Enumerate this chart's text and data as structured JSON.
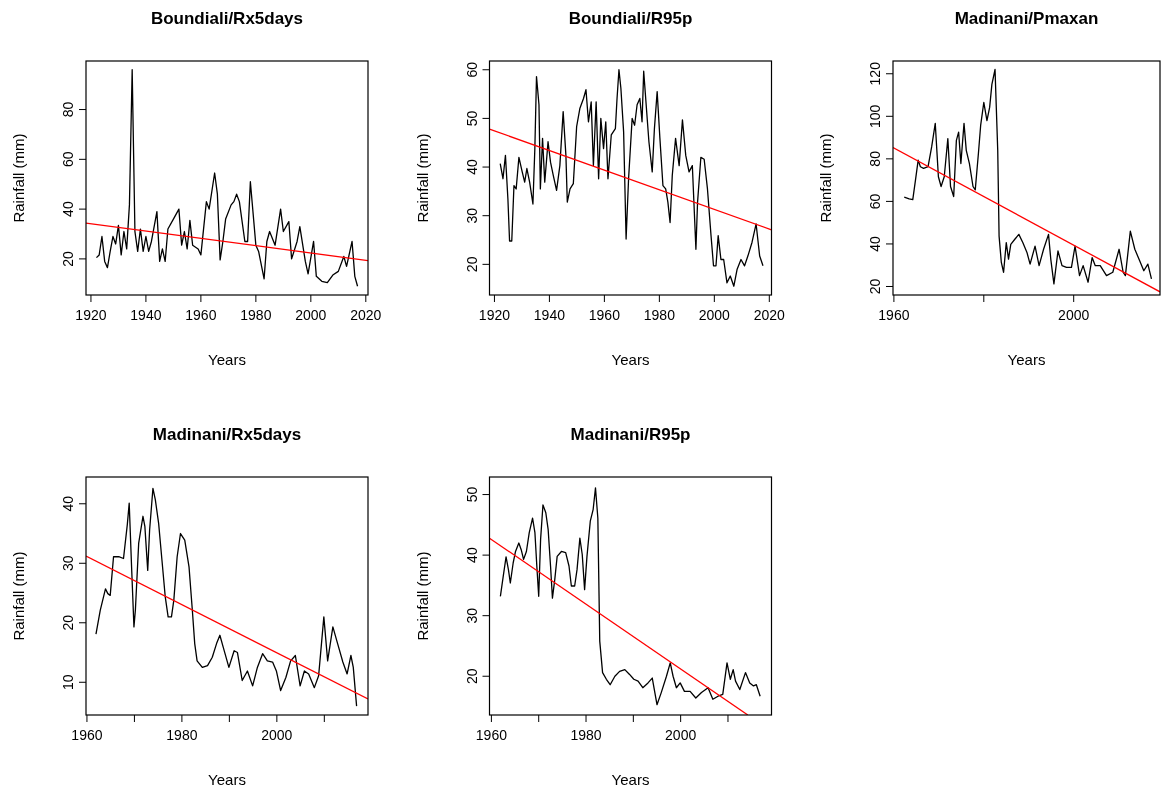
{
  "chart_data": [
    {
      "type": "line",
      "title": "Boundiali/Rx5days",
      "xlabel": "Years",
      "ylabel": "Rainfall (mm)",
      "xlim": [
        1918.2,
        2020.8
      ],
      "ylim": [
        5.5,
        99.5
      ],
      "xticks": [
        1920,
        1940,
        1960,
        1980,
        2000,
        2020
      ],
      "yticks": [
        20,
        40,
        60,
        80
      ],
      "series": [
        {
          "color": "#000000",
          "x": [
            1922,
            1923,
            1924,
            1925,
            1926,
            1927,
            1928,
            1929,
            1930,
            1931,
            1932,
            1933,
            1934,
            1935,
            1936,
            1937,
            1938,
            1939,
            1940,
            1941,
            1942,
            1944,
            1945,
            1946,
            1947,
            1948,
            1950,
            1952,
            1953,
            1954,
            1955,
            1956,
            1957,
            1959,
            1960,
            1962,
            1963,
            1965,
            1966,
            1967,
            1968,
            1969,
            1971,
            1972,
            1973,
            1974,
            1976,
            1977,
            1978,
            1980,
            1981,
            1983,
            1984,
            1985,
            1987,
            1989,
            1990,
            1992,
            1993,
            1995,
            1996,
            1998,
            1999,
            2001,
            2002,
            2004,
            2006,
            2008,
            2010,
            2012,
            2013,
            2015,
            2016,
            2017
          ],
          "values": [
            20.5,
            21.6,
            29,
            19,
            16.5,
            23,
            29,
            26,
            33.5,
            21.6,
            31,
            24,
            41.7,
            96,
            31,
            23,
            32,
            23,
            29,
            23,
            27,
            39,
            19,
            24,
            19,
            32,
            36,
            40,
            25.5,
            31,
            24,
            35.5,
            25.5,
            24,
            21.6,
            43,
            40,
            54.5,
            46,
            19.6,
            27,
            36,
            41.7,
            43,
            46,
            43,
            27,
            27,
            51,
            25.5,
            23,
            12,
            27,
            31,
            25.5,
            40,
            31,
            35,
            20,
            27,
            33,
            19,
            14,
            27,
            13,
            11,
            10.5,
            13.5,
            15,
            21,
            17,
            27,
            13,
            9
          ]
        },
        {
          "color": "#ff0000",
          "x": [
            1918.2,
            2020.8
          ],
          "values": [
            34.4,
            19.3
          ]
        }
      ]
    },
    {
      "type": "line",
      "title": "Boundiali/R95p",
      "xlabel": "Years",
      "ylabel": "Rainfall (mm)",
      "xlim": [
        1918.2,
        2020.8
      ],
      "ylim": [
        13.7,
        61.8
      ],
      "xticks": [
        1920,
        1940,
        1960,
        1980,
        2000,
        2020
      ],
      "yticks": [
        20,
        30,
        40,
        50,
        60
      ],
      "series": [
        {
          "color": "#000000",
          "x": [
            1922.1,
            1923.1,
            1924.0,
            1924.9,
            1925.5,
            1926.3,
            1927.1,
            1927.9,
            1928.9,
            1930.1,
            1931.0,
            1931.8,
            1932.8,
            1934.0,
            1934.7,
            1935.3,
            1936.2,
            1936.7,
            1937.5,
            1938.3,
            1939.5,
            1940.4,
            1941.4,
            1942.6,
            1943.8,
            1945.0,
            1946.0,
            1946.5,
            1947.5,
            1948.7,
            1949.9,
            1951.1,
            1952.4,
            1953.3,
            1954.2,
            1955.2,
            1956.0,
            1957.0,
            1957.9,
            1958.7,
            1959.7,
            1960.5,
            1961.3,
            1962.5,
            1964.0,
            1964.6,
            1965.3,
            1966.0,
            1967.0,
            1967.9,
            1968.8,
            1970.1,
            1971.0,
            1971.9,
            1972.9,
            1973.7,
            1974.3,
            1975.2,
            1976.2,
            1977.4,
            1978.2,
            1979.2,
            1980.2,
            1981.3,
            1982.3,
            1983.1,
            1983.9,
            1984.7,
            1985.9,
            1987.2,
            1988.4,
            1989.6,
            1990.8,
            1992.0,
            1993.3,
            1993.9,
            1995.1,
            1996.3,
            1997.5,
            1998.8,
            1999.7,
            2000.6,
            2001.4,
            2002.4,
            2003.4,
            2004.6,
            2005.8,
            2007.1,
            2008.3,
            2009.7,
            2011.0,
            2012.2,
            2013.7,
            2015.2,
            2016.5,
            2017.7
          ],
          "values": [
            40.7,
            37.6,
            42.4,
            33.4,
            24.8,
            24.8,
            36.2,
            35.5,
            42,
            39,
            36.9,
            39.7,
            36.9,
            32.4,
            43.8,
            58.6,
            52.8,
            35.5,
            45.9,
            36.9,
            45.2,
            41,
            38.3,
            35.2,
            40.3,
            51.4,
            42.4,
            32.8,
            35.5,
            36.6,
            48.3,
            52.1,
            54.1,
            55.9,
            49.3,
            53.4,
            40.3,
            53.4,
            37.6,
            50,
            43.8,
            49.3,
            37.6,
            46.6,
            47.9,
            54.1,
            60,
            56.2,
            47.2,
            25.2,
            37.6,
            50,
            48.6,
            52.8,
            54.1,
            49.3,
            59.7,
            52.8,
            45.2,
            39,
            47.9,
            55.5,
            45.9,
            36.2,
            35.5,
            32.8,
            28.6,
            38.3,
            45.9,
            40.3,
            49.7,
            42.4,
            39,
            40.3,
            23.1,
            32.8,
            42,
            41.6,
            35.5,
            25.9,
            19.7,
            19.7,
            25.9,
            21,
            21,
            16.2,
            17.6,
            15.5,
            19,
            21,
            19.7,
            21.7,
            24.5,
            28.3,
            21.7,
            19.7
          ]
        },
        {
          "color": "#ff0000",
          "x": [
            1918.2,
            2020.8
          ],
          "values": [
            47.8,
            27.1
          ]
        }
      ]
    },
    {
      "type": "line",
      "title": "Madinani/Pmaxan",
      "xlabel": "Years",
      "ylabel": "Rainfall (mm)",
      "xlim": [
        1959.8,
        2019.2
      ],
      "ylim": [
        16,
        126
      ],
      "xticks": [
        1960,
        {
          "value": 1980,
          "label": null
        },
        2000
      ],
      "yticks": [
        20,
        40,
        60,
        80,
        100,
        120
      ],
      "series": [
        {
          "color": "#000000",
          "x": [
            1962.3,
            1963.4,
            1964.2,
            1964.8,
            1965.4,
            1965.9,
            1966.6,
            1967.6,
            1968.4,
            1969.2,
            1969.9,
            1970.5,
            1971.2,
            1972,
            1972.6,
            1973.3,
            1973.9,
            1974.4,
            1974.9,
            1975.6,
            1976.1,
            1976.8,
            1977.6,
            1978.1,
            1978.8,
            1979.3,
            1980,
            1980.7,
            1981.3,
            1981.8,
            1982.5,
            1983.1,
            1983.4,
            1983.9,
            1984.4,
            1985,
            1985.5,
            1986,
            1986.9,
            1987.8,
            1988.7,
            1989.6,
            1990.3,
            1991.4,
            1992.3,
            1993.3,
            1994.4,
            1994.9,
            1995.6,
            1996.5,
            1997.4,
            1998.4,
            1999.5,
            2000.3,
            2001.3,
            2002.1,
            2003.2,
            2004.1,
            2004.8,
            2005.9,
            2007.3,
            2008.7,
            2010.1,
            2011,
            2011.5,
            2012.6,
            2013.6,
            2014.7,
            2015.6,
            2016.5,
            2017.3
          ],
          "values": [
            62,
            61.2,
            60.8,
            70,
            79.4,
            76.3,
            75.5,
            76.3,
            85.6,
            96.7,
            71.6,
            67,
            71.6,
            89.5,
            67,
            62.3,
            88.7,
            92.6,
            77.8,
            96.7,
            84,
            77.8,
            67,
            65.4,
            82.5,
            95.7,
            106.5,
            98,
            104.2,
            115,
            122,
            84,
            43.7,
            31.3,
            26.7,
            40.6,
            32.9,
            39.8,
            42.2,
            44.5,
            40.6,
            36,
            30.5,
            39,
            29.8,
            37.5,
            44.5,
            32.9,
            21.2,
            36.7,
            29.8,
            29,
            29,
            39,
            25.1,
            29.8,
            22,
            33.6,
            29.8,
            29.8,
            25.1,
            26.7,
            37.5,
            26.7,
            25.1,
            46,
            37.5,
            32,
            27.4,
            30.5,
            23.6
          ]
        },
        {
          "color": "#ff0000",
          "x": [
            1959.8,
            2019.2
          ],
          "values": [
            85.3,
            17.5
          ]
        }
      ]
    },
    {
      "type": "line",
      "title": "Madinani/Rx5days",
      "xlabel": "Years",
      "ylabel": "Rainfall (mm)",
      "xlim": [
        1959.8,
        2019.2
      ],
      "ylim": [
        4.5,
        44.5
      ],
      "xticks": [
        1960,
        {
          "value": 1970,
          "label": null
        },
        1980,
        {
          "value": 1990,
          "label": null
        },
        2000,
        {
          "value": 2010,
          "label": null
        }
      ],
      "yticks": [
        10,
        20,
        30,
        40
      ],
      "series": [
        {
          "color": "#000000",
          "x": [
            1961.9,
            1962.8,
            1963.9,
            1964.4,
            1964.9,
            1965.6,
            1966.7,
            1967.7,
            1968.5,
            1968.9,
            1969.4,
            1969.9,
            1970.2,
            1970.9,
            1971.8,
            1972.2,
            1972.8,
            1973.2,
            1973.9,
            1974.4,
            1975.1,
            1975.8,
            1976.5,
            1977.1,
            1977.8,
            1978.3,
            1979,
            1979.7,
            1980.6,
            1981.5,
            1982.2,
            1982.7,
            1983.2,
            1984.3,
            1985.4,
            1986.4,
            1987.3,
            1988.0,
            1988.7,
            1989.9,
            1991,
            1991.7,
            1992.7,
            1993.8,
            1994.9,
            1995.9,
            1997,
            1998,
            1999.1,
            1999.9,
            2000.8,
            2001.9,
            2002.9,
            2003.9,
            2004.9,
            2005.8,
            2006.7,
            2007.9,
            2008.8,
            2009.9,
            2010.7,
            2011.8,
            2012.8,
            2013.9,
            2014.8,
            2015.6,
            2016.1,
            2016.8
          ],
          "values": [
            18.1,
            22.1,
            25.7,
            24.9,
            24.6,
            31.1,
            31.1,
            30.8,
            36.5,
            40.1,
            29.4,
            19.3,
            22.1,
            33.4,
            37.9,
            36.2,
            28.8,
            35.6,
            42.6,
            40.7,
            36.7,
            30.5,
            24.3,
            21,
            21,
            23.8,
            31.1,
            35,
            33.9,
            29.4,
            22.1,
            16.5,
            13.6,
            12.5,
            12.8,
            14.2,
            16.5,
            17.9,
            15.9,
            12.5,
            15.3,
            15,
            10.3,
            11.9,
            9.4,
            12.5,
            14.8,
            13.6,
            13.4,
            11.9,
            8.6,
            10.8,
            13.6,
            14.5,
            9.4,
            11.9,
            11.4,
            9.1,
            11.1,
            21,
            13.6,
            19.3,
            16.5,
            13.4,
            11.4,
            14.5,
            12.5,
            6
          ]
        },
        {
          "color": "#ff0000",
          "x": [
            1959.8,
            2019.2
          ],
          "values": [
            31.2,
            7.2
          ]
        }
      ]
    },
    {
      "type": "line",
      "title": "Madinani/R95p",
      "xlabel": "Years",
      "ylabel": "Rainfall (mm)",
      "xlim": [
        1959.6,
        2019.2
      ],
      "ylim": [
        13.6,
        52.9
      ],
      "xticks": [
        1960,
        {
          "value": 1970,
          "label": null
        },
        1980,
        {
          "value": 1990,
          "label": null
        },
        2000,
        {
          "value": 2010,
          "label": null
        }
      ],
      "yticks": [
        20,
        30,
        40,
        50
      ],
      "series": [
        {
          "color": "#000000",
          "x": [
            1961.9,
            1962.5,
            1963.1,
            1963.6,
            1964,
            1964.6,
            1965.1,
            1965.8,
            1966.3,
            1966.8,
            1967.4,
            1968,
            1968.7,
            1969.2,
            1969.6,
            1970,
            1970.4,
            1970.9,
            1971.5,
            1972,
            1972.5,
            1972.9,
            1973.4,
            1973.9,
            1974.8,
            1975.7,
            1976.4,
            1976.9,
            1977.6,
            1978.1,
            1978.7,
            1979.2,
            1979.7,
            1980.2,
            1980.9,
            1981.5,
            1982,
            1982.5,
            1982.9,
            1983.5,
            1984.3,
            1985.1,
            1986.1,
            1987.1,
            1988.2,
            1989.2,
            1990.1,
            1991,
            1992,
            1993.1,
            1994,
            1995,
            1995.9,
            1997,
            1997.8,
            1998.4,
            1999.1,
            1999.9,
            2000.8,
            2002,
            2003.2,
            2004.4,
            2005.8,
            2006.8,
            2007.9,
            2008.9,
            2009.8,
            2010.5,
            2011.1,
            2011.6,
            2012.5,
            2013.7,
            2014.6,
            2015.4,
            2016,
            2016.8
          ],
          "values": [
            33.2,
            36.5,
            39.7,
            37.6,
            35.4,
            38.7,
            40.6,
            42,
            40.9,
            39.3,
            40.6,
            43.7,
            46.1,
            43.7,
            38.2,
            33.2,
            42.6,
            48.3,
            47,
            44.2,
            38.2,
            32.9,
            36,
            39.8,
            40.6,
            40.4,
            38.2,
            34.9,
            34.9,
            37.6,
            42.8,
            40.1,
            34.3,
            39.8,
            45.6,
            47.5,
            51.1,
            46.1,
            25.8,
            20.6,
            19.5,
            18.6,
            20,
            20.8,
            21.1,
            20.3,
            19.5,
            19.2,
            18.1,
            18.9,
            19.7,
            15.3,
            17.3,
            20,
            22.2,
            20,
            18.1,
            18.9,
            17.5,
            17.5,
            16.4,
            17.3,
            18.1,
            16.2,
            16.7,
            17,
            22.2,
            19.5,
            21.1,
            19.2,
            17.8,
            20.6,
            18.9,
            18.4,
            18.6,
            16.7
          ]
        },
        {
          "color": "#ff0000",
          "x": [
            1959.6,
            2014.2
          ],
          "values": [
            42.8,
            13.6
          ]
        }
      ]
    }
  ]
}
